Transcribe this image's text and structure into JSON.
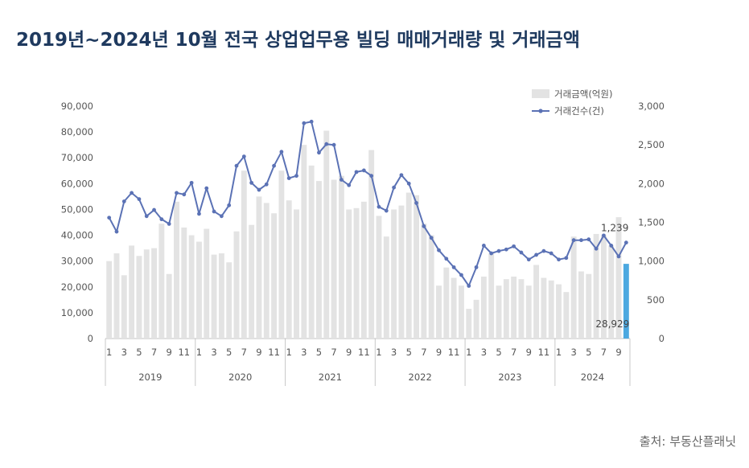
{
  "title": "2019년~2024년 10월 전국 상업업무용 빌딩 매매거래량 및 거래금액",
  "source": "출처: 부동산플래닛",
  "chart_data": {
    "type": "bar",
    "title": "2019년~2024년 10월 전국 상업업무용 빌딩 매매거래량 및 거래금액",
    "months": [
      1,
      2,
      3,
      4,
      5,
      6,
      7,
      8,
      9,
      10,
      11,
      12,
      1,
      2,
      3,
      4,
      5,
      6,
      7,
      8,
      9,
      10,
      11,
      12,
      1,
      2,
      3,
      4,
      5,
      6,
      7,
      8,
      9,
      10,
      11,
      12,
      1,
      2,
      3,
      4,
      5,
      6,
      7,
      8,
      9,
      10,
      11,
      12,
      1,
      2,
      3,
      4,
      5,
      6,
      7,
      8,
      9,
      10,
      11,
      12,
      1,
      2,
      3,
      4,
      5,
      6,
      7,
      8,
      9,
      10
    ],
    "month_tick_labels": [
      "1",
      "3",
      "5",
      "7",
      "9",
      "11",
      "1",
      "3",
      "5",
      "7",
      "9",
      "11",
      "1",
      "3",
      "5",
      "7",
      "9",
      "11",
      "1",
      "3",
      "5",
      "7",
      "9",
      "11",
      "1",
      "3",
      "5",
      "7",
      "9",
      "11",
      "1",
      "3",
      "5",
      "7",
      "9"
    ],
    "years": [
      "2019",
      "2020",
      "2021",
      "2022",
      "2023",
      "2024"
    ],
    "left_axis": {
      "min": 0,
      "max": 90000,
      "ticks": [
        "90,000",
        "80,000",
        "70,000",
        "60,000",
        "50,000",
        "40,000",
        "30,000",
        "20,000",
        "10,000",
        "0"
      ]
    },
    "right_axis": {
      "min": 0,
      "max": 3000,
      "ticks": [
        "3,000",
        "2,500",
        "2,000",
        "1,500",
        "1,000",
        "500",
        "0"
      ]
    },
    "legend_position": "top-right",
    "series": [
      {
        "name": "거래금액(억원)",
        "type": "bar",
        "axis": "left",
        "color": "#e3e3e3",
        "values": [
          30000,
          33000,
          24500,
          36000,
          32000,
          34500,
          35000,
          44500,
          25000,
          53000,
          43000,
          40000,
          37500,
          42500,
          32500,
          33000,
          29500,
          41500,
          65000,
          44000,
          55000,
          52500,
          48500,
          65000,
          53500,
          50000,
          75000,
          67000,
          61000,
          80500,
          61500,
          63000,
          50000,
          50500,
          53000,
          73000,
          47500,
          39500,
          50000,
          51500,
          56500,
          55500,
          44500,
          40000,
          20500,
          27500,
          23500,
          20500,
          11500,
          15000,
          24000,
          33000,
          20500,
          23000,
          24000,
          23000,
          20500,
          28500,
          23500,
          22500,
          21000,
          18000,
          39500,
          26000,
          25000,
          40500,
          40000,
          36000,
          47000,
          28929
        ]
      },
      {
        "name": "거래건수(건)",
        "type": "line",
        "axis": "right",
        "color": "#5b72b5",
        "values": [
          1560,
          1380,
          1770,
          1880,
          1800,
          1580,
          1660,
          1540,
          1480,
          1880,
          1860,
          2010,
          1610,
          1940,
          1640,
          1580,
          1720,
          2230,
          2350,
          2010,
          1920,
          1990,
          2230,
          2410,
          2070,
          2100,
          2780,
          2800,
          2400,
          2510,
          2500,
          2050,
          1980,
          2150,
          2170,
          2100,
          1700,
          1650,
          1950,
          2110,
          2000,
          1750,
          1450,
          1300,
          1140,
          1030,
          920,
          820,
          680,
          920,
          1200,
          1100,
          1130,
          1150,
          1190,
          1110,
          1020,
          1080,
          1130,
          1100,
          1020,
          1040,
          1270,
          1270,
          1280,
          1160,
          1330,
          1200,
          1060,
          1239
        ]
      }
    ],
    "annotations": [
      {
        "text": "1,239",
        "series": "거래건수(건)",
        "index": 69
      },
      {
        "text": "28,929",
        "series": "거래금액(억원)",
        "index": 69
      }
    ],
    "highlight": {
      "index": 69,
      "color": "#4ba8e0"
    }
  }
}
